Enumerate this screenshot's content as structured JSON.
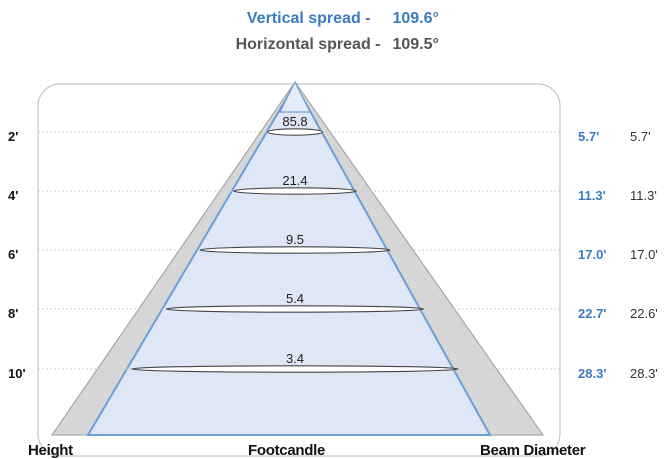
{
  "spread": {
    "vertical_label": "Vertical spread -",
    "vertical_value": "109.6°",
    "horizontal_label": "Horizontal spread -",
    "horizontal_value": "109.5°"
  },
  "footer": {
    "height": "Height",
    "footcandle": "Footcandle",
    "beam_diameter": "Beam Diameter"
  },
  "rows": [
    {
      "height": "2'",
      "footcandle": "85.8",
      "dia_vertical": "5.7'",
      "dia_horizontal": "5.7'"
    },
    {
      "height": "4'",
      "footcandle": "21.4",
      "dia_vertical": "11.3'",
      "dia_horizontal": "11.3'"
    },
    {
      "height": "6'",
      "footcandle": "9.5",
      "dia_vertical": "17.0'",
      "dia_horizontal": "17.0'"
    },
    {
      "height": "8'",
      "footcandle": "5.4",
      "dia_vertical": "22.7'",
      "dia_horizontal": "22.6'"
    },
    {
      "height": "10'",
      "footcandle": "3.4",
      "dia_vertical": "28.3'",
      "dia_horizontal": "28.3'"
    }
  ],
  "colors": {
    "vertical_accent": "#3a7bbf",
    "horizontal_text": "#555555",
    "beam_fill": "#dfe6f5",
    "outer_cone": "#d6d6d6"
  }
}
